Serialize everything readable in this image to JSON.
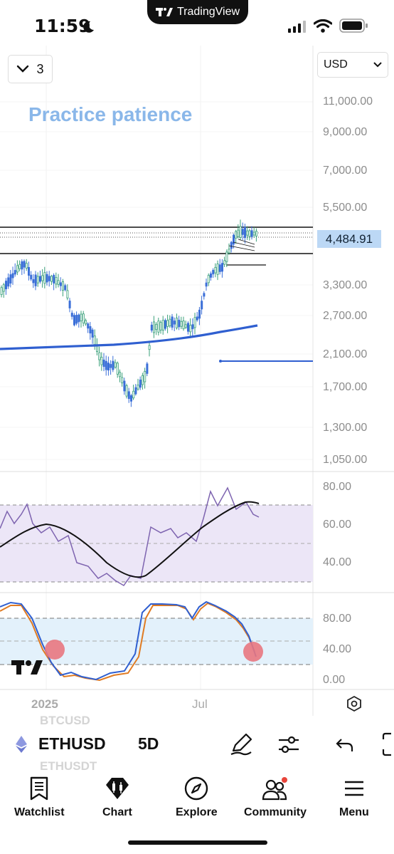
{
  "status": {
    "time": "11:59",
    "app_badge": "TradingView"
  },
  "chart": {
    "interval_value": "3",
    "currency": "USD",
    "annotation_text": "Practice patience",
    "last_price": "4,484.91",
    "price_axis": [
      "11,000.00",
      "9,000.00",
      "7,000.00",
      "5,500.00",
      "3,300.00",
      "2,700.00",
      "2,100.00",
      "1,700.00",
      "1,300.00",
      "1,050.00"
    ],
    "rsi_axis": [
      "80.00",
      "60.00",
      "40.00"
    ],
    "stoch_axis": [
      "80.00",
      "40.00",
      "0.00"
    ],
    "time_axis": [
      "2025",
      "Jul"
    ]
  },
  "toolbar": {
    "symbol": "ETHUSD",
    "timeframe": "5D",
    "ghost_above": "BTCUSD",
    "ghost_below": "ETHUSDT"
  },
  "tabs": [
    {
      "label": "Watchlist"
    },
    {
      "label": "Chart"
    },
    {
      "label": "Explore"
    },
    {
      "label": "Community"
    },
    {
      "label": "Menu"
    }
  ]
}
